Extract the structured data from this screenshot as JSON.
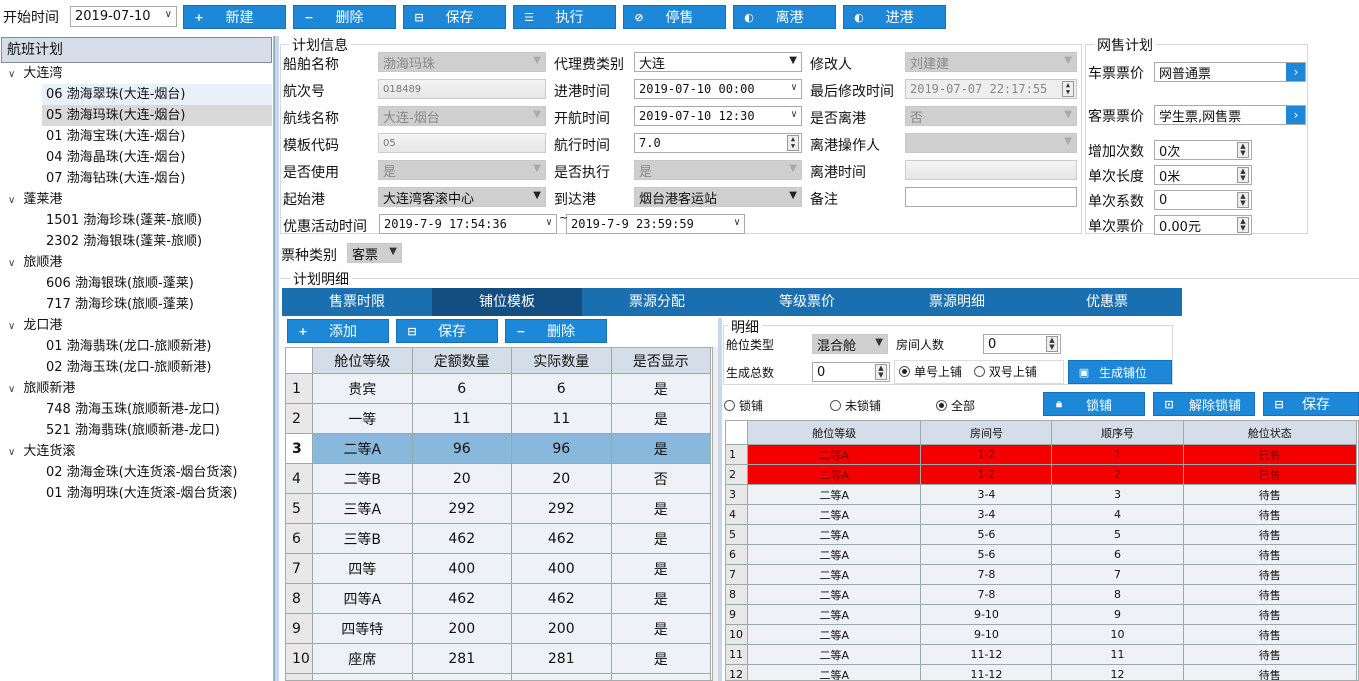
{
  "toolbar": {
    "start_label": "开始时间",
    "start_date": "2019-07-10",
    "buttons": [
      {
        "icon": "plus-icon",
        "glyph": "+",
        "label": "新建"
      },
      {
        "icon": "minus-icon",
        "glyph": "−",
        "label": "删除"
      },
      {
        "icon": "save-icon",
        "glyph": "⊟",
        "label": "保存"
      },
      {
        "icon": "execute-icon",
        "glyph": "☰",
        "label": "执行"
      },
      {
        "icon": "ban-icon",
        "glyph": "⊘",
        "label": "停售"
      },
      {
        "icon": "depart-icon",
        "glyph": "◐",
        "label": "离港"
      },
      {
        "icon": "arrive-icon",
        "glyph": "◐",
        "label": "进港"
      }
    ]
  },
  "sidebar": {
    "title": "航班计划",
    "groups": [
      {
        "name": "大连湾",
        "items": [
          "06 渤海翠珠(大连-烟台)",
          "05 渤海玛珠(大连-烟台)",
          "01 渤海宝珠(大连-烟台)",
          "04 渤海晶珠(大连-烟台)",
          "07 渤海钻珠(大连-烟台)"
        ]
      },
      {
        "name": "蓬莱港",
        "items": [
          "1501 渤海珍珠(蓬莱-旅顺)",
          "2302 渤海银珠(蓬莱-旅顺)"
        ]
      },
      {
        "name": "旅顺港",
        "items": [
          "606 渤海银珠(旅顺-蓬莱)",
          "717 渤海珍珠(旅顺-蓬莱)"
        ]
      },
      {
        "name": "龙口港",
        "items": [
          "01 渤海翡珠(龙口-旅顺新港)",
          "02 渤海玉珠(龙口-旅顺新港)"
        ]
      },
      {
        "name": "旅顺新港",
        "items": [
          "748 渤海玉珠(旅顺新港-龙口)",
          "521 渤海翡珠(旅顺新港-龙口)"
        ]
      },
      {
        "name": "大连货滚",
        "items": [
          "02 渤海金珠(大连货滚-烟台货滚)",
          "01 渤海明珠(大连货滚-烟台货滚)"
        ]
      }
    ]
  },
  "plan_info": {
    "title": "计划信息",
    "ship_label": "船舶名称",
    "ship": "渤海玛珠",
    "agent_label": "代理费类别",
    "agent": "大连",
    "modifier_label": "修改人",
    "modifier": "刘建建",
    "voyage_label": "航次号",
    "voyage": "018489",
    "in_time_label": "进港时间",
    "in_time": "2019-07-10 00:00",
    "last_mod_label": "最后修改时间",
    "last_mod": "2019-07-07 22:17:55",
    "route_label": "航线名称",
    "route": "大连-烟台",
    "sail_time_label": "开航时间",
    "sail_time": "2019-07-10 12:30",
    "departed_label": "是否离港",
    "departed": "否",
    "template_label": "模板代码",
    "template": "05",
    "duration_label": "航行时间",
    "duration": "7.0",
    "depart_op_label": "离港操作人",
    "depart_op": "",
    "in_use_label": "是否使用",
    "in_use": "是",
    "executed_label": "是否执行",
    "executed": "是",
    "depart_time_label": "离港时间",
    "depart_time": "",
    "origin_label": "起始港",
    "origin": "大连湾客滚中心",
    "dest_label": "到达港",
    "dest": "烟台港客运站",
    "remark_label": "备注",
    "remark": "",
    "promo_label": "优惠活动时间",
    "promo_start": "2019-7-9 17:54:36",
    "promo_sep": "~",
    "promo_end": "2019-7-9 23:59:59",
    "ticket_type_label": "票种类别",
    "ticket_type": "客票"
  },
  "net_sale": {
    "title": "网售计划",
    "car_price_label": "车票票价",
    "car_price": "网普通票",
    "pax_price_label": "客票票价",
    "pax_price": "学生票,网售票",
    "add_count_label": "增加次数",
    "add_count": "0次",
    "unit_len_label": "单次长度",
    "unit_len": "0米",
    "unit_coef_label": "单次系数",
    "unit_coef": "0",
    "unit_price_label": "单次票价",
    "unit_price": "0.00元"
  },
  "detail": {
    "title": "计划明细",
    "tabs": [
      "售票时限",
      "铺位模板",
      "票源分配",
      "等级票价",
      "票源明细",
      "优惠票"
    ],
    "active_tab": 1,
    "left_buttons": [
      {
        "glyph": "+",
        "label": "添加"
      },
      {
        "glyph": "⊟",
        "label": "保存"
      },
      {
        "glyph": "−",
        "label": "删除"
      }
    ],
    "left_columns": [
      "舱位等级",
      "定额数量",
      "实际数量",
      "是否显示"
    ],
    "left_rows": [
      [
        "贵宾",
        "6",
        "6",
        "是"
      ],
      [
        "一等",
        "11",
        "11",
        "是"
      ],
      [
        "二等A",
        "96",
        "96",
        "是"
      ],
      [
        "二等B",
        "20",
        "20",
        "否"
      ],
      [
        "三等A",
        "292",
        "292",
        "是"
      ],
      [
        "三等B",
        "462",
        "462",
        "是"
      ],
      [
        "四等",
        "400",
        "400",
        "是"
      ],
      [
        "四等A",
        "462",
        "462",
        "是"
      ],
      [
        "四等特",
        "200",
        "200",
        "是"
      ],
      [
        "座席",
        "281",
        "281",
        "是"
      ]
    ],
    "left_selected": 2,
    "sub": {
      "title": "明细",
      "cabin_type_label": "舱位类型",
      "cabin_type": "混合舱",
      "room_people_label": "房间人数",
      "room_people": "0",
      "total_label": "生成总数",
      "total": "0",
      "odd_label": "单号上铺",
      "even_label": "双号上铺",
      "generate_label": "生成铺位",
      "filter_locked": "锁铺",
      "filter_unlocked": "未锁铺",
      "filter_all": "全部",
      "lock_label": "锁铺",
      "unlock_label": "解除锁铺",
      "save_label": "保存",
      "columns": [
        "舱位等级",
        "房间号",
        "顺序号",
        "舱位状态"
      ],
      "rows": [
        [
          "二等A",
          "1-2",
          "1",
          "已售"
        ],
        [
          "二等A",
          "1-2",
          "2",
          "已售"
        ],
        [
          "二等A",
          "3-4",
          "3",
          "待售"
        ],
        [
          "二等A",
          "3-4",
          "4",
          "待售"
        ],
        [
          "二等A",
          "5-6",
          "5",
          "待售"
        ],
        [
          "二等A",
          "5-6",
          "6",
          "待售"
        ],
        [
          "二等A",
          "7-8",
          "7",
          "待售"
        ],
        [
          "二等A",
          "7-8",
          "8",
          "待售"
        ],
        [
          "二等A",
          "9-10",
          "9",
          "待售"
        ],
        [
          "二等A",
          "9-10",
          "10",
          "待售"
        ],
        [
          "二等A",
          "11-12",
          "11",
          "待售"
        ],
        [
          "二等A",
          "11-12",
          "12",
          "待售"
        ]
      ]
    }
  },
  "colors": {
    "accent": "#1e88d8",
    "sold": "#f40000",
    "selected_row": "#88b8dc",
    "tab_bar": "#1a6fb0",
    "tab_active": "#134e80"
  }
}
